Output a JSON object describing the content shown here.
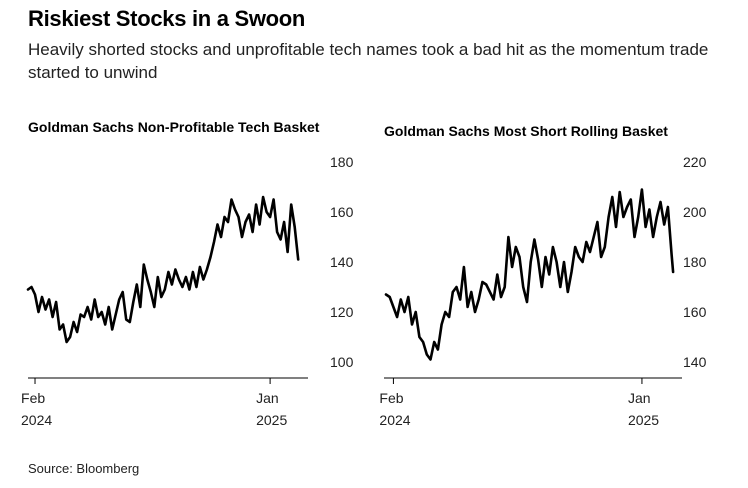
{
  "title": "Riskiest Stocks in a Swoon",
  "subtitle": "Heavily shorted stocks and unprofitable tech names took a bad hit as the momentum trade started to unwind",
  "source": "Source: Bloomberg",
  "colors": {
    "line": "#000000",
    "axis": "#000000",
    "text": "#222222",
    "background": "#ffffff"
  },
  "chart_data": [
    {
      "type": "line",
      "title": "Goldman Sachs Non-Profitable Tech Basket",
      "yticks": [
        100,
        120,
        140,
        160,
        180
      ],
      "ylim": [
        100,
        180
      ],
      "xticks": [
        {
          "date": "2024-02-01",
          "label": [
            "Feb",
            "2024"
          ]
        },
        {
          "date": "2025-01-01",
          "label": [
            "Jan",
            "2025"
          ]
        }
      ],
      "xlim": [
        "2024-01-22",
        "2025-02-24"
      ],
      "grid": false,
      "series": [
        {
          "x": [
            "2024-01-22",
            "2024-01-27",
            "2024-02-01",
            "2024-02-06",
            "2024-02-11",
            "2024-02-16",
            "2024-02-21",
            "2024-02-26",
            "2024-03-02",
            "2024-03-07",
            "2024-03-12",
            "2024-03-17",
            "2024-03-22",
            "2024-03-27",
            "2024-04-01",
            "2024-04-06",
            "2024-04-11",
            "2024-04-16",
            "2024-04-21",
            "2024-04-26",
            "2024-05-01",
            "2024-05-06",
            "2024-05-11",
            "2024-05-16",
            "2024-05-21",
            "2024-05-26",
            "2024-05-31",
            "2024-06-05",
            "2024-06-10",
            "2024-06-15",
            "2024-06-20",
            "2024-06-25",
            "2024-06-30",
            "2024-07-05",
            "2024-07-10",
            "2024-07-15",
            "2024-07-20",
            "2024-07-25",
            "2024-07-30",
            "2024-08-04",
            "2024-08-09",
            "2024-08-14",
            "2024-08-19",
            "2024-08-24",
            "2024-08-29",
            "2024-09-03",
            "2024-09-08",
            "2024-09-13",
            "2024-09-18",
            "2024-09-23",
            "2024-09-28",
            "2024-10-03",
            "2024-10-08",
            "2024-10-13",
            "2024-10-18",
            "2024-10-23",
            "2024-10-28",
            "2024-11-02",
            "2024-11-07",
            "2024-11-12",
            "2024-11-17",
            "2024-11-22",
            "2024-11-27",
            "2024-12-02",
            "2024-12-07",
            "2024-12-12",
            "2024-12-17",
            "2024-12-22",
            "2024-12-27",
            "2025-01-01",
            "2025-01-06",
            "2025-01-11",
            "2025-01-16",
            "2025-01-21",
            "2025-01-26",
            "2025-01-31",
            "2025-02-05",
            "2025-02-10"
          ],
          "y": [
            129,
            130,
            127,
            120,
            126,
            121,
            125,
            118,
            124,
            113,
            115,
            108,
            110,
            116,
            112,
            119,
            118,
            122,
            117,
            125,
            118,
            120,
            115,
            122,
            113,
            119,
            125,
            128,
            117,
            116,
            124,
            131,
            122,
            139,
            133,
            128,
            122,
            134,
            126,
            129,
            136,
            131,
            137,
            133,
            130,
            134,
            129,
            136,
            130,
            138,
            133,
            137,
            142,
            148,
            155,
            150,
            158,
            156,
            165,
            161,
            158,
            150,
            156,
            159,
            152,
            163,
            155,
            166,
            160,
            158,
            165,
            152,
            149,
            156,
            144,
            163,
            154,
            141
          ]
        }
      ]
    },
    {
      "type": "line",
      "title": "Goldman Sachs Most Short Rolling Basket",
      "yticks": [
        140,
        160,
        180,
        200,
        220
      ],
      "ylim": [
        140,
        220
      ],
      "xticks": [
        {
          "date": "2024-02-01",
          "label": [
            "Feb",
            "2024"
          ]
        },
        {
          "date": "2025-01-01",
          "label": [
            "Jan",
            "2025"
          ]
        }
      ],
      "xlim": [
        "2024-01-22",
        "2025-02-24"
      ],
      "grid": false,
      "series": [
        {
          "x": [
            "2024-01-22",
            "2024-01-27",
            "2024-02-01",
            "2024-02-06",
            "2024-02-11",
            "2024-02-16",
            "2024-02-21",
            "2024-02-26",
            "2024-03-02",
            "2024-03-07",
            "2024-03-12",
            "2024-03-17",
            "2024-03-22",
            "2024-03-27",
            "2024-04-01",
            "2024-04-06",
            "2024-04-11",
            "2024-04-16",
            "2024-04-21",
            "2024-04-26",
            "2024-05-01",
            "2024-05-06",
            "2024-05-11",
            "2024-05-16",
            "2024-05-21",
            "2024-05-26",
            "2024-05-31",
            "2024-06-05",
            "2024-06-10",
            "2024-06-15",
            "2024-06-20",
            "2024-06-25",
            "2024-06-30",
            "2024-07-05",
            "2024-07-10",
            "2024-07-15",
            "2024-07-20",
            "2024-07-25",
            "2024-07-30",
            "2024-08-04",
            "2024-08-09",
            "2024-08-14",
            "2024-08-19",
            "2024-08-24",
            "2024-08-29",
            "2024-09-03",
            "2024-09-08",
            "2024-09-13",
            "2024-09-18",
            "2024-09-23",
            "2024-09-28",
            "2024-10-03",
            "2024-10-08",
            "2024-10-13",
            "2024-10-18",
            "2024-10-23",
            "2024-10-28",
            "2024-11-02",
            "2024-11-07",
            "2024-11-12",
            "2024-11-17",
            "2024-11-22",
            "2024-11-27",
            "2024-12-02",
            "2024-12-07",
            "2024-12-12",
            "2024-12-17",
            "2024-12-22",
            "2024-12-27",
            "2025-01-01",
            "2025-01-06",
            "2025-01-11",
            "2025-01-16",
            "2025-01-21",
            "2025-01-26",
            "2025-01-31",
            "2025-02-05",
            "2025-02-10",
            "2025-02-12"
          ],
          "y": [
            167,
            166,
            162,
            158,
            165,
            160,
            166,
            155,
            160,
            150,
            148,
            143,
            141,
            148,
            145,
            155,
            160,
            158,
            168,
            170,
            165,
            178,
            162,
            168,
            160,
            165,
            172,
            171,
            168,
            165,
            175,
            166,
            170,
            190,
            178,
            186,
            182,
            170,
            164,
            180,
            189,
            181,
            170,
            182,
            175,
            186,
            180,
            170,
            180,
            168,
            176,
            186,
            182,
            180,
            188,
            184,
            190,
            196,
            182,
            186,
            198,
            206,
            194,
            208,
            198,
            202,
            205,
            190,
            198,
            209,
            194,
            201,
            190,
            198,
            204,
            195,
            202,
            183,
            176
          ]
        }
      ]
    }
  ]
}
